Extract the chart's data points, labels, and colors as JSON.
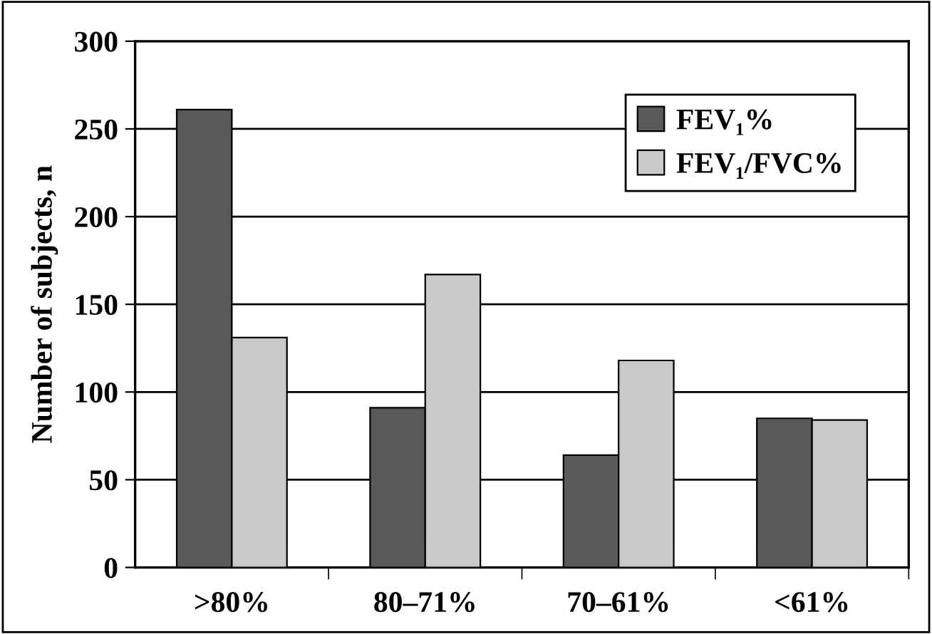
{
  "chart_data": {
    "type": "bar",
    "ylabel": "Number of subjects, n",
    "categories": [
      ">80%",
      "80–71%",
      "70–61%",
      "<61%"
    ],
    "series": [
      {
        "name": "FEV₁%",
        "color": "#58595b",
        "values": [
          261,
          91,
          64,
          85
        ]
      },
      {
        "name": "FEV₁/FVC%",
        "color": "#c8c9cb",
        "values": [
          131,
          167,
          118,
          84
        ]
      }
    ],
    "ylim": [
      0,
      300
    ],
    "yticks": [
      0,
      50,
      100,
      150,
      200,
      250,
      300
    ],
    "grid": "y",
    "legend": "top right"
  }
}
